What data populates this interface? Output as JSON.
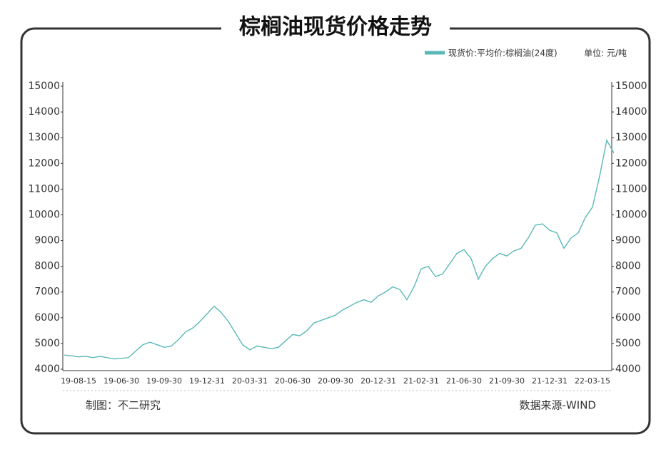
{
  "chart_data": {
    "type": "line",
    "title": "棕榈油现货价格走势",
    "unit": "单位: 元/吨",
    "credit": "制图：不二研究",
    "source": "数据来源-WIND",
    "categories": [
      null,
      null,
      "19-08-15",
      null,
      null,
      null,
      null,
      null,
      "19-06-30",
      null,
      null,
      null,
      null,
      null,
      "19-09-30",
      null,
      null,
      null,
      null,
      null,
      "19-12-31",
      null,
      null,
      null,
      null,
      null,
      "20-03-31",
      null,
      null,
      null,
      null,
      null,
      "20-06-30",
      null,
      null,
      null,
      null,
      null,
      "20-09-30",
      null,
      null,
      null,
      null,
      null,
      "20-12-31",
      null,
      null,
      null,
      null,
      null,
      "21-02-31",
      null,
      null,
      null,
      null,
      null,
      "21-06-30",
      null,
      null,
      null,
      null,
      null,
      "21-09-30",
      null,
      null,
      null,
      null,
      null,
      "21-12-31",
      null,
      null,
      null,
      null,
      null,
      "22-03-15",
      null,
      null,
      null
    ],
    "series": [
      {
        "name": "现货价:平均价:棕榈油(24度)",
        "color": "#5bb8b8",
        "values": [
          4550,
          4520,
          4480,
          4500,
          4450,
          4500,
          4450,
          4400,
          4420,
          4450,
          4700,
          4950,
          5050,
          4950,
          4850,
          4900,
          5150,
          5450,
          5600,
          5850,
          6150,
          6450,
          6200,
          5850,
          5400,
          4950,
          4750,
          4900,
          4850,
          4800,
          4850,
          5100,
          5350,
          5300,
          5500,
          5800,
          5900,
          6000,
          6100,
          6300,
          6450,
          6600,
          6700,
          6600,
          6850,
          7000,
          7200,
          7100,
          6700,
          7200,
          7900,
          8000,
          7600,
          7700,
          8100,
          8500,
          8650,
          8300,
          7500,
          8000,
          8300,
          8500,
          8400,
          8600,
          8700,
          9100,
          9600,
          9650,
          9400,
          9300,
          8700,
          9100,
          9300,
          9900,
          10300,
          11500,
          12900,
          12400
        ]
      }
    ],
    "ylim": [
      4000,
      15000
    ],
    "yticks": [
      4000,
      5000,
      6000,
      7000,
      8000,
      9000,
      10000,
      11000,
      12000,
      13000,
      14000,
      15000
    ]
  }
}
